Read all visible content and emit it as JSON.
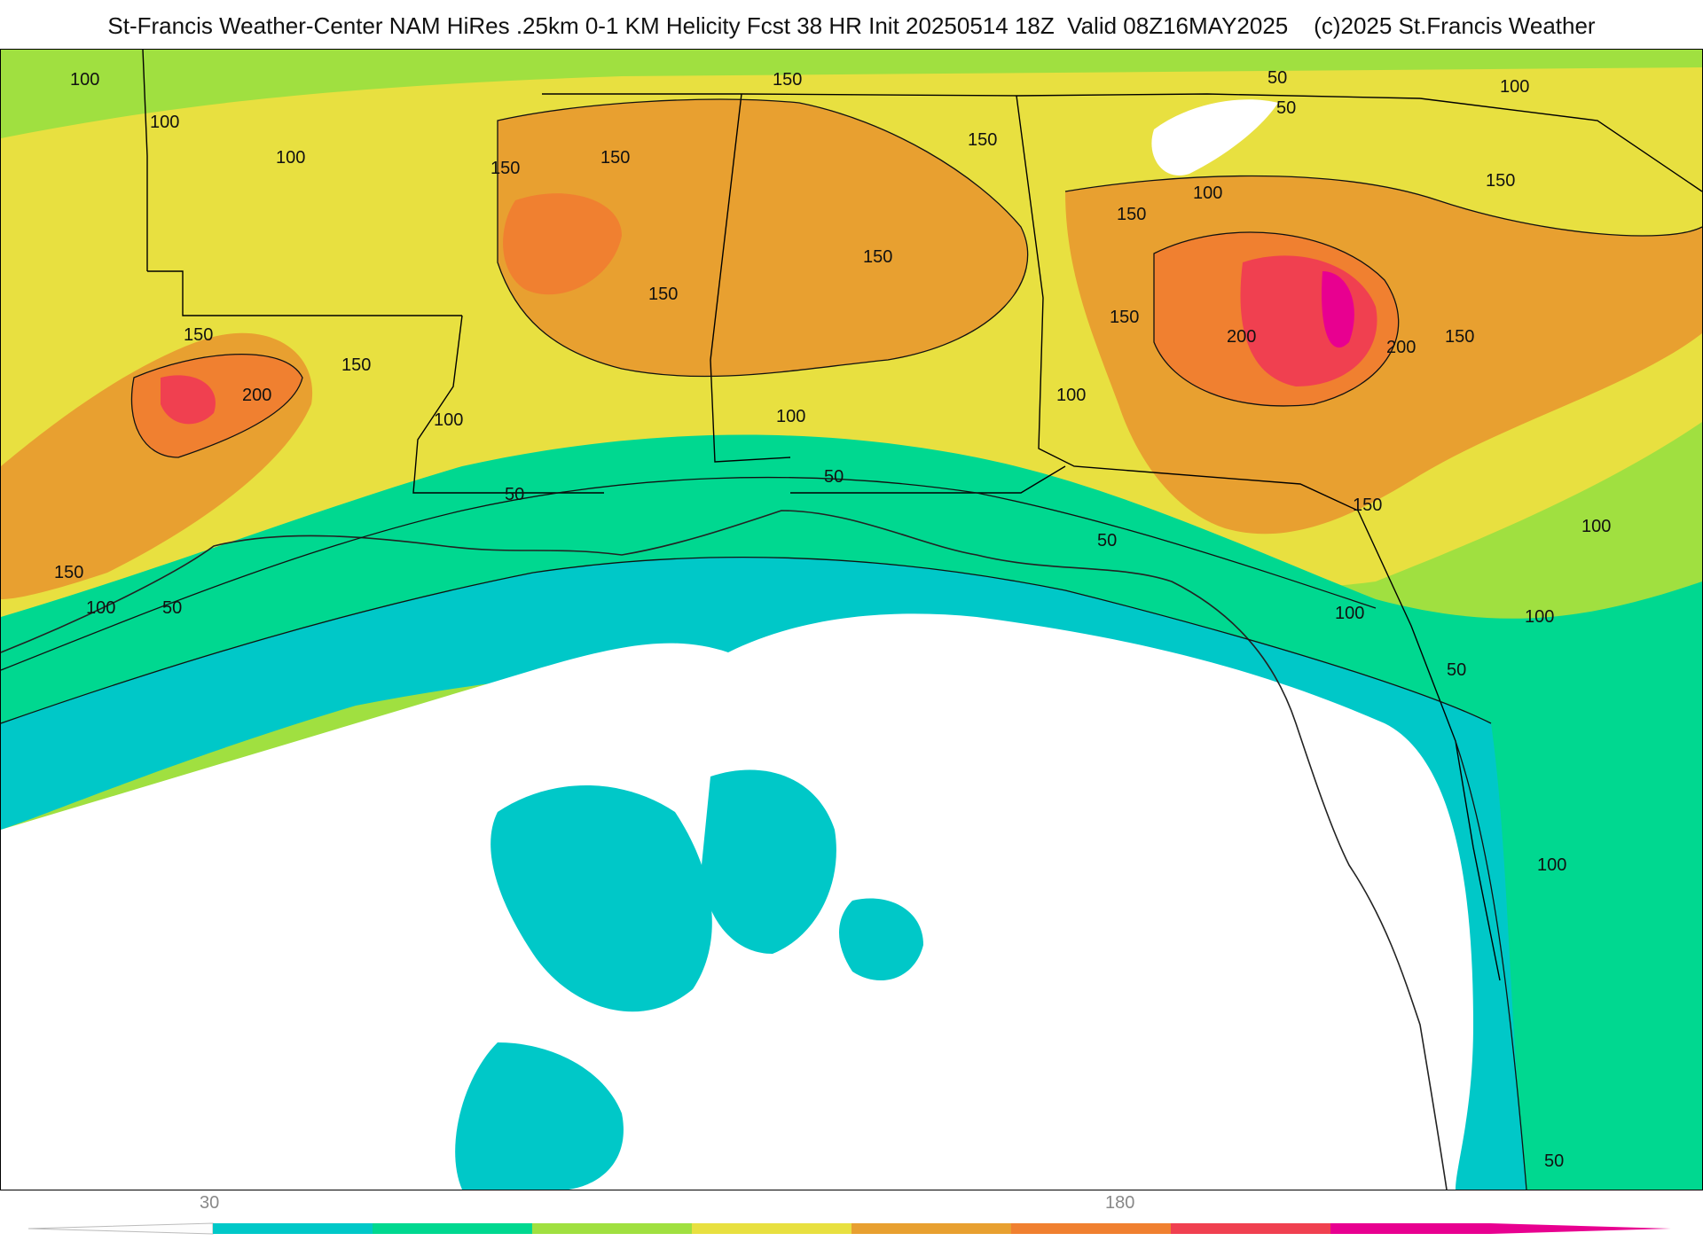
{
  "header": {
    "title": "St-Francis Weather-Center NAM HiRes .25km 0-1 KM Helicity Fcst 38 HR Init 20250514 18Z  Valid 08Z16MAY2025    (c)2025 St.Francis Weather"
  },
  "map": {
    "variable": "0-1 KM Helicity",
    "contour_labels": [
      "100",
      "100",
      "100",
      "150",
      "150",
      "150",
      "150",
      "150",
      "150",
      "150",
      "150",
      "150",
      "150",
      "150",
      "150",
      "150",
      "200",
      "200",
      "200",
      "100",
      "100",
      "100",
      "100",
      "100",
      "100",
      "100",
      "100",
      "50",
      "50",
      "50",
      "50",
      "50",
      "50",
      "50",
      "100",
      "100",
      "50",
      "150"
    ]
  },
  "colorbar": {
    "tick_labels": [
      "30",
      "180"
    ],
    "colors": [
      "#00c8c8",
      "#00d890",
      "#a0e040",
      "#e8e040",
      "#e8a030",
      "#f08030",
      "#f04050",
      "#e80090"
    ]
  },
  "colors": {
    "bg": "#ffffff",
    "cyan": "#00c8c8",
    "green": "#00d890",
    "lightgreen": "#a0e040",
    "yellow": "#e8e040",
    "orange": "#e8a030",
    "darkorange": "#f08030",
    "red": "#f04050",
    "magenta": "#e80090"
  }
}
